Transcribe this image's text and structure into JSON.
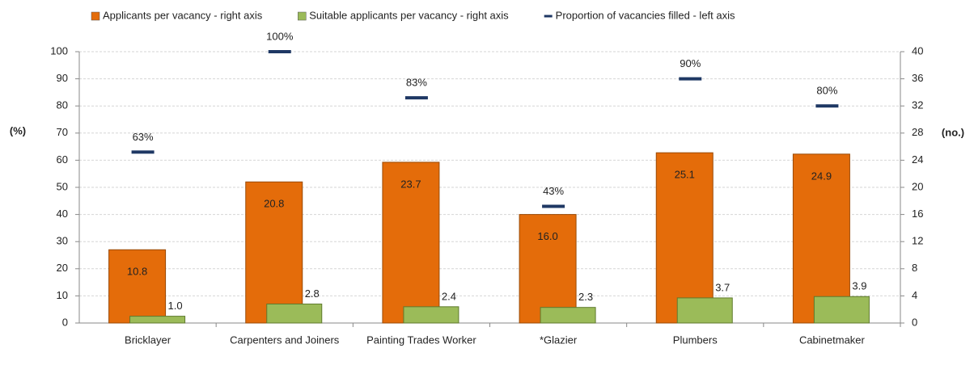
{
  "chart_data": {
    "type": "bar",
    "categories": [
      "Bricklayer",
      "Carpenters and Joiners",
      "Painting Trades Worker",
      "*Glazier",
      "Plumbers",
      "Cabinetmaker"
    ],
    "series": [
      {
        "name": "Applicants per vacancy - right axis",
        "type": "bar",
        "axis": "y2",
        "color": "#e46c0a",
        "values": [
          10.8,
          20.8,
          23.7,
          16.0,
          25.1,
          24.9
        ],
        "value_labels": [
          "10.8",
          "20.8",
          "23.7",
          "16.0",
          "25.1",
          "24.9"
        ]
      },
      {
        "name": "Suitable applicants per vacancy - right axis",
        "type": "bar",
        "axis": "y2",
        "color": "#9bbb59",
        "values": [
          1.0,
          2.8,
          2.4,
          2.3,
          3.7,
          3.9
        ],
        "value_labels": [
          "1.0",
          "2.8",
          "2.4",
          "2.3",
          "3.7",
          "3.9"
        ]
      },
      {
        "name": "Proportion of vacancies filled - left axis",
        "type": "marker",
        "axis": "y",
        "color": "#1f3864",
        "values": [
          63,
          100,
          83,
          43,
          90,
          80
        ],
        "value_labels": [
          "63%",
          "100%",
          "83%",
          "43%",
          "90%",
          "80%"
        ]
      }
    ],
    "ylabel": "(%)",
    "y2label": "(no.)",
    "ylim": [
      0,
      100
    ],
    "yticks": [
      0,
      10,
      20,
      30,
      40,
      50,
      60,
      70,
      80,
      90,
      100
    ],
    "y2lim": [
      0,
      40
    ],
    "y2ticks": [
      0,
      4,
      8,
      12,
      16,
      20,
      24,
      28,
      32,
      36,
      40
    ],
    "grid": true,
    "legend": "top"
  }
}
